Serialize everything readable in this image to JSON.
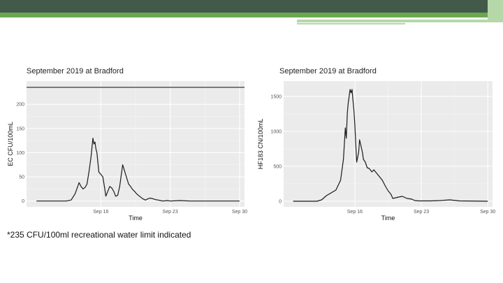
{
  "note": "*235 CFU/100ml recreational water limit indicated",
  "colors": {
    "header_dark": "#43594a",
    "accent_green": "#6aa84f",
    "accent_light": "#b6d7a8",
    "panel_bg": "#ebebeb",
    "grid": "#ffffff",
    "line": "#1a1a1a"
  },
  "chart_data": [
    {
      "type": "line",
      "title": "September 2019 at Bradford",
      "xlabel": "Time",
      "ylabel": "EC CFU/100mL",
      "xlim": [
        8.5,
        30.5
      ],
      "ylim": [
        -12,
        248
      ],
      "x_ticks": [
        16,
        23,
        30
      ],
      "x_tick_labels": [
        "Sep 16",
        "Sep 23",
        "Sep 30"
      ],
      "y_ticks": [
        0,
        50,
        100,
        150,
        200
      ],
      "y_tick_labels": [
        "0",
        "50",
        "100",
        "150",
        "200"
      ],
      "grid": true,
      "reference_line": {
        "y": 235
      },
      "series": [
        {
          "x": [
            9.5,
            10.5,
            11.5,
            12.5,
            13.0,
            13.4,
            13.8,
            14.0,
            14.2,
            14.4,
            14.6,
            14.8,
            15.0,
            15.2,
            15.3,
            15.4,
            15.5,
            15.6,
            15.7,
            15.8,
            16.0,
            16.2,
            16.4,
            16.5,
            16.7,
            16.9,
            17.1,
            17.3,
            17.5,
            17.7,
            17.9,
            18.2,
            18.5,
            18.8,
            19.0,
            19.2,
            19.4,
            19.6,
            19.9,
            20.2,
            20.5,
            20.8,
            21.0,
            21.2,
            21.5,
            21.8,
            22.0,
            22.3,
            22.7,
            23.0,
            24.0,
            25.0,
            27.0,
            30.0
          ],
          "y": [
            0,
            0,
            0,
            0,
            2,
            15,
            38,
            30,
            25,
            28,
            35,
            60,
            90,
            130,
            118,
            122,
            108,
            100,
            80,
            60,
            55,
            50,
            25,
            10,
            20,
            30,
            27,
            20,
            10,
            12,
            30,
            75,
            55,
            35,
            30,
            24,
            20,
            15,
            10,
            5,
            2,
            5,
            6,
            5,
            3,
            2,
            1,
            0,
            1,
            0,
            1,
            0,
            0,
            0
          ]
        }
      ]
    },
    {
      "type": "line",
      "title": "September 2019 at Bradford",
      "xlabel": "Time",
      "ylabel": "HF183 CN/100mL",
      "xlim": [
        8.5,
        30.5
      ],
      "ylim": [
        -80,
        1720
      ],
      "x_ticks": [
        16,
        23,
        30
      ],
      "x_tick_labels": [
        "Sep 16",
        "Sep 23",
        "Sep 30"
      ],
      "y_ticks": [
        0,
        500,
        1000,
        1500
      ],
      "y_tick_labels": [
        "0",
        "500",
        "1000",
        "1500"
      ],
      "grid": true,
      "series": [
        {
          "x": [
            9.5,
            11.0,
            12.0,
            12.5,
            13.0,
            13.5,
            14.0,
            14.5,
            14.8,
            15.0,
            15.1,
            15.2,
            15.3,
            15.5,
            15.6,
            15.7,
            15.8,
            15.9,
            16.0,
            16.1,
            16.2,
            16.4,
            16.5,
            16.6,
            16.7,
            16.8,
            16.9,
            17.1,
            17.3,
            17.5,
            17.8,
            18.0,
            18.3,
            18.6,
            18.9,
            19.2,
            19.5,
            19.8,
            20.0,
            20.3,
            20.6,
            21.0,
            21.5,
            22.0,
            22.3,
            22.7,
            23.0,
            24.0,
            25.0,
            26.0,
            27.0,
            30.0
          ],
          "y": [
            0,
            0,
            0,
            20,
            80,
            120,
            160,
            300,
            600,
            1050,
            900,
            1250,
            1400,
            1600,
            1550,
            1600,
            1450,
            1300,
            1100,
            800,
            560,
            700,
            880,
            820,
            760,
            700,
            600,
            560,
            480,
            470,
            420,
            450,
            400,
            350,
            300,
            220,
            150,
            100,
            40,
            50,
            60,
            70,
            40,
            30,
            10,
            5,
            5,
            5,
            10,
            20,
            5,
            0
          ]
        }
      ]
    }
  ]
}
